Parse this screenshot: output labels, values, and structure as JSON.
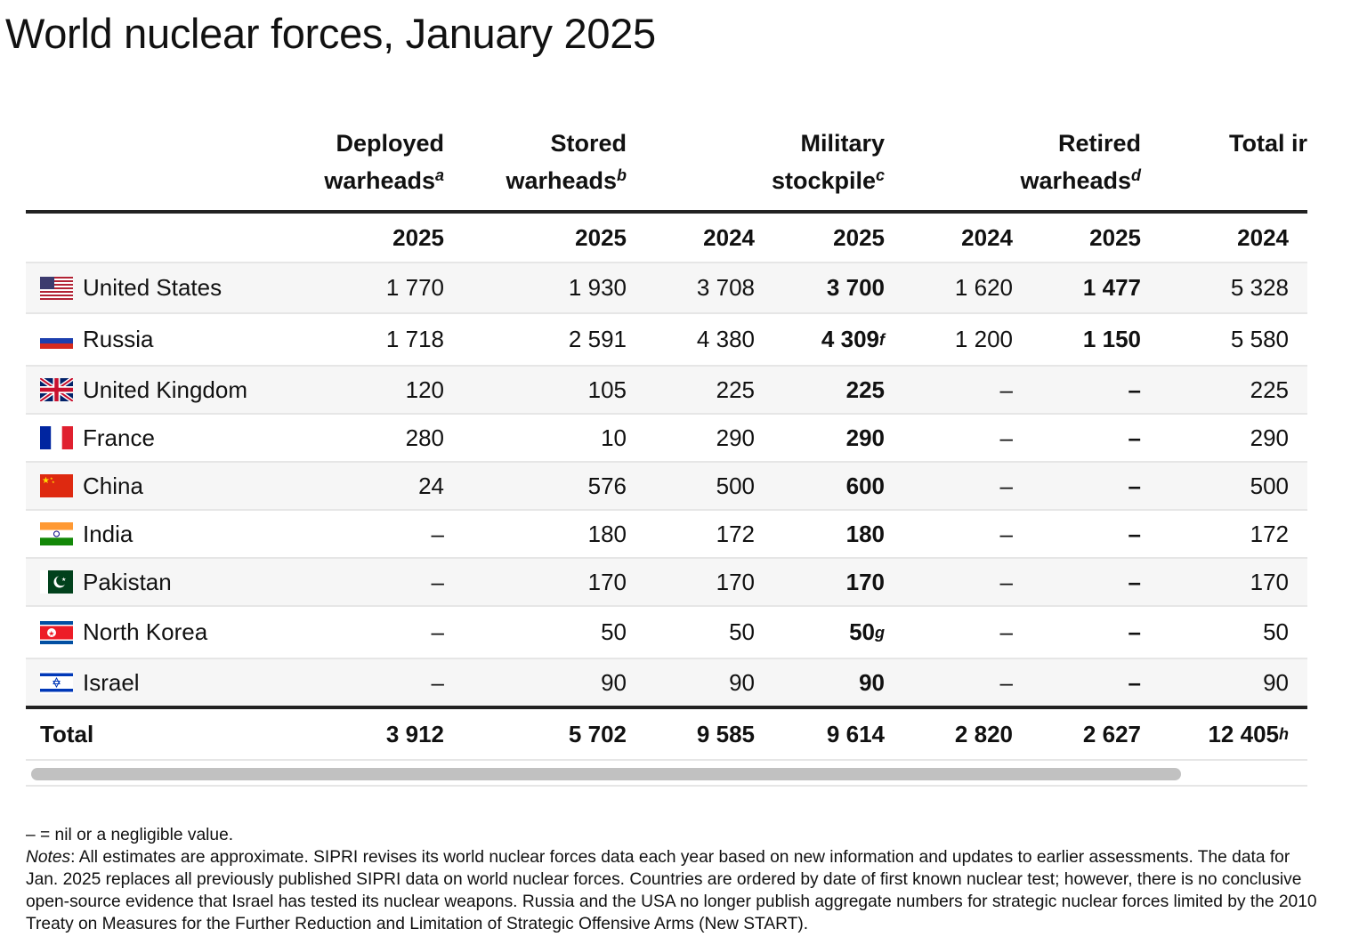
{
  "title": "World nuclear forces, January 2025",
  "column_groups": [
    {
      "line1": "Deployed",
      "line2": "warheads",
      "sup": "a"
    },
    {
      "line1": "Stored",
      "line2": "warheads",
      "sup": "b"
    },
    {
      "line1": "Military",
      "line2": "stockpile",
      "sup": "c"
    },
    {
      "line1": "Retired",
      "line2": "warheads",
      "sup": "d"
    },
    {
      "line1": "",
      "line2": "Total ir",
      "sup": ""
    }
  ],
  "years": [
    "2025",
    "2025",
    "2024",
    "2025",
    "2024",
    "2025",
    "2024"
  ],
  "rows": [
    {
      "country": "United States",
      "flag_icon": "us-flag-icon",
      "values": [
        "1 770",
        "1 930",
        "3 708",
        "3 700",
        "1 620",
        "1 477",
        "5 328"
      ],
      "sup": ""
    },
    {
      "country": "Russia",
      "flag_icon": "russia-flag-icon",
      "values": [
        "1 718",
        "2 591",
        "4 380",
        "4 309",
        "1 200",
        "1 150",
        "5 580"
      ],
      "sup": "f"
    },
    {
      "country": "United Kingdom",
      "flag_icon": "uk-flag-icon",
      "values": [
        "120",
        "105",
        "225",
        "225",
        "–",
        "–",
        "225"
      ],
      "sup": ""
    },
    {
      "country": "France",
      "flag_icon": "france-flag-icon",
      "values": [
        "280",
        "10",
        "290",
        "290",
        "–",
        "–",
        "290"
      ],
      "sup": ""
    },
    {
      "country": "China",
      "flag_icon": "china-flag-icon",
      "values": [
        "24",
        "576",
        "500",
        "600",
        "–",
        "–",
        "500"
      ],
      "sup": ""
    },
    {
      "country": "India",
      "flag_icon": "india-flag-icon",
      "values": [
        "–",
        "180",
        "172",
        "180",
        "–",
        "–",
        "172"
      ],
      "sup": ""
    },
    {
      "country": "Pakistan",
      "flag_icon": "pakistan-flag-icon",
      "values": [
        "–",
        "170",
        "170",
        "170",
        "–",
        "–",
        "170"
      ],
      "sup": ""
    },
    {
      "country": "North Korea",
      "flag_icon": "north-korea-flag-icon",
      "values": [
        "–",
        "50",
        "50",
        "50",
        "–",
        "–",
        "50"
      ],
      "sup": "g"
    },
    {
      "country": "Israel",
      "flag_icon": "israel-flag-icon",
      "values": [
        "–",
        "90",
        "90",
        "90",
        "–",
        "–",
        "90"
      ],
      "sup": ""
    }
  ],
  "total": {
    "label": "Total",
    "values": [
      "3 912",
      "5 702",
      "9 585",
      "9 614",
      "2 820",
      "2 627",
      "12 405"
    ],
    "last_sup": "h"
  },
  "notes": {
    "legend": "– = nil or a negligible value.",
    "notes_label": "Notes",
    "notes_text": ": All estimates are approximate. SIPRI revises its world nuclear forces data each year based on new information and updates to earlier assessments. The data for Jan. 2025 replaces all previously published SIPRI data on world nuclear forces. Countries are ordered by date of first known nuclear test; however, there is no conclusive open-source evidence that Israel has tested its nuclear weapons. Russia and the USA no longer publish aggregate numbers for strategic nuclear forces limited by the 2010 Treaty on Measures for the Further Reduction and Limitation of Strategic Offensive Arms (New START)."
  },
  "colors": {
    "rule": "#222222",
    "row_shade": "#f6f6f6",
    "scrollbar_thumb": "#c1c1c1"
  }
}
